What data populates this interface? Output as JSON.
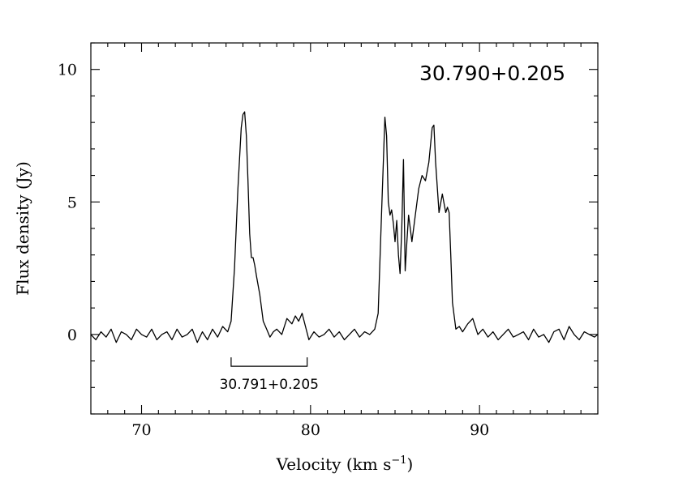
{
  "chart_data": {
    "type": "line",
    "xlabel": "Velocity (km s",
    "xlabel_sup": "−1",
    "xlabel_close": ")",
    "ylabel": "Flux density (Jy)",
    "xlim": [
      67,
      97
    ],
    "ylim": [
      -3,
      11
    ],
    "x_ticks": [
      70,
      80,
      90
    ],
    "x_tick_labels": [
      "70",
      "80",
      "90"
    ],
    "y_ticks": [
      0,
      5,
      10
    ],
    "y_tick_labels": [
      "0",
      "5",
      "10"
    ],
    "annotations": {
      "source_label": "30.790+0.205",
      "bracket": {
        "label": "30.791+0.205",
        "x_start": 75.3,
        "x_end": 79.8,
        "y": -1.2
      }
    },
    "series": [
      {
        "x": [
          67.0,
          67.3,
          67.6,
          67.9,
          68.2,
          68.5,
          68.8,
          69.1,
          69.4,
          69.7,
          70.0,
          70.3,
          70.6,
          70.9,
          71.2,
          71.5,
          71.8,
          72.1,
          72.4,
          72.7,
          73.0,
          73.3,
          73.6,
          73.9,
          74.2,
          74.5,
          74.8,
          75.1,
          75.3,
          75.5,
          75.7,
          75.9,
          76.0,
          76.1,
          76.2,
          76.3,
          76.4,
          76.5,
          76.6,
          76.7,
          76.8,
          77.0,
          77.2,
          77.4,
          77.6,
          77.8,
          78.0,
          78.3,
          78.6,
          78.9,
          79.1,
          79.3,
          79.5,
          79.7,
          79.9,
          80.2,
          80.5,
          80.8,
          81.1,
          81.4,
          81.7,
          82.0,
          82.3,
          82.6,
          82.9,
          83.2,
          83.5,
          83.8,
          84.0,
          84.2,
          84.4,
          84.5,
          84.6,
          84.7,
          84.8,
          84.9,
          85.0,
          85.1,
          85.2,
          85.3,
          85.4,
          85.5,
          85.6,
          85.7,
          85.8,
          85.9,
          86.0,
          86.2,
          86.4,
          86.6,
          86.8,
          87.0,
          87.2,
          87.3,
          87.4,
          87.6,
          87.8,
          88.0,
          88.1,
          88.2,
          88.3,
          88.4,
          88.6,
          88.8,
          89.0,
          89.3,
          89.6,
          89.9,
          90.2,
          90.5,
          90.8,
          91.1,
          91.4,
          91.7,
          92.0,
          92.3,
          92.6,
          92.9,
          93.2,
          93.5,
          93.8,
          94.1,
          94.4,
          94.7,
          95.0,
          95.3,
          95.6,
          95.9,
          96.2,
          96.5,
          96.8,
          97.0
        ],
        "y": [
          0.0,
          -0.2,
          0.1,
          -0.1,
          0.2,
          -0.3,
          0.1,
          0.0,
          -0.2,
          0.2,
          0.0,
          -0.1,
          0.2,
          -0.2,
          0.0,
          0.1,
          -0.2,
          0.2,
          -0.1,
          0.0,
          0.2,
          -0.3,
          0.1,
          -0.2,
          0.2,
          -0.1,
          0.3,
          0.1,
          0.5,
          2.5,
          5.5,
          7.8,
          8.3,
          8.4,
          7.5,
          5.8,
          3.8,
          2.9,
          2.9,
          2.6,
          2.2,
          1.5,
          0.5,
          0.2,
          -0.1,
          0.1,
          0.2,
          0.0,
          0.6,
          0.4,
          0.7,
          0.5,
          0.8,
          0.3,
          -0.2,
          0.1,
          -0.1,
          0.0,
          0.2,
          -0.1,
          0.1,
          -0.2,
          0.0,
          0.2,
          -0.1,
          0.1,
          0.0,
          0.2,
          0.8,
          4.5,
          8.2,
          7.5,
          5.0,
          4.5,
          4.7,
          4.2,
          3.5,
          4.3,
          3.0,
          2.3,
          4.0,
          6.6,
          2.4,
          3.5,
          4.5,
          4.0,
          3.5,
          4.5,
          5.5,
          6.0,
          5.8,
          6.5,
          7.8,
          7.9,
          6.5,
          4.6,
          5.3,
          4.6,
          4.8,
          4.6,
          3.0,
          1.2,
          0.2,
          0.3,
          0.1,
          0.4,
          0.6,
          0.0,
          0.2,
          -0.1,
          0.1,
          -0.2,
          0.0,
          0.2,
          -0.1,
          0.0,
          0.1,
          -0.2,
          0.2,
          -0.1,
          0.0,
          -0.3,
          0.1,
          0.2,
          -0.2,
          0.3,
          0.0,
          -0.2,
          0.1,
          0.0,
          -0.1,
          0.0
        ]
      }
    ]
  }
}
